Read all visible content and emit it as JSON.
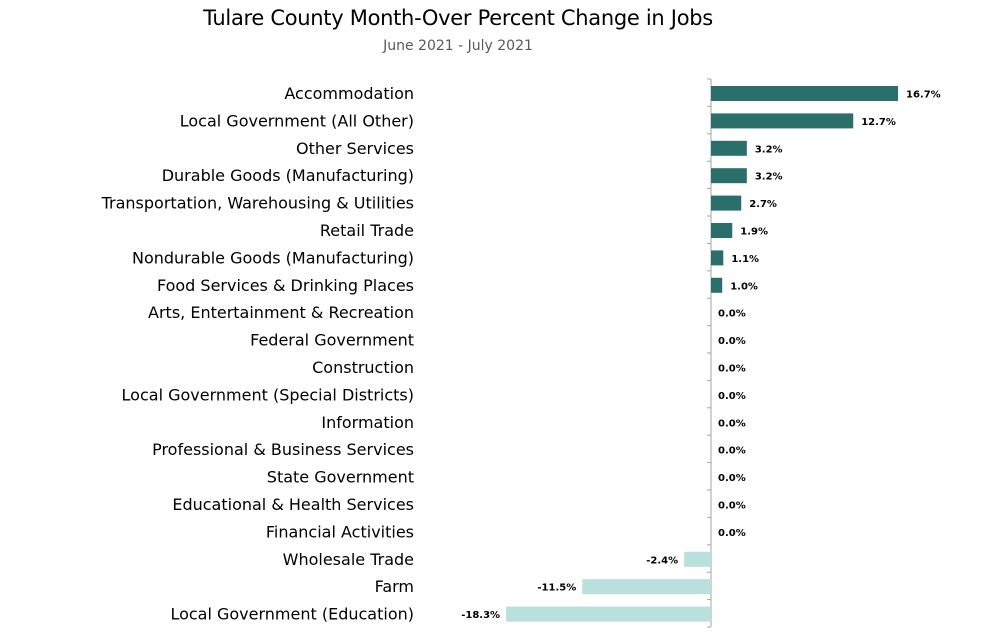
{
  "colors": {
    "positive": "#2a6f6a",
    "negative": "#b9e0dc",
    "axis": "#a6a6a6"
  },
  "chart_data": {
    "type": "bar",
    "orientation": "horizontal",
    "title": "Tulare County Month-Over Percent Change in Jobs",
    "subtitle": "June 2021 - July 2021",
    "grid": false,
    "legend": "none",
    "xlim": [
      -18.3,
      16.7
    ],
    "categories": [
      "Accommodation",
      "Local Government (All Other)",
      "Other Services",
      "Durable Goods (Manufacturing)",
      "Transportation, Warehousing & Utilities",
      "Retail Trade",
      "Nondurable Goods (Manufacturing)",
      "Food Services & Drinking Places",
      "Arts, Entertainment & Recreation",
      "Federal Government",
      "Construction",
      "Local Government (Special Districts)",
      "Information",
      "Professional & Business Services",
      "State Government",
      "Educational & Health Services",
      "Financial Activities",
      "Wholesale Trade",
      "Farm",
      "Local Government (Education)"
    ],
    "values": [
      16.7,
      12.7,
      3.2,
      3.2,
      2.7,
      1.9,
      1.1,
      1.0,
      0.0,
      0.0,
      0.0,
      0.0,
      0.0,
      0.0,
      0.0,
      0.0,
      0.0,
      -2.4,
      -11.5,
      -18.3
    ],
    "value_labels": [
      "16.7%",
      "12.7%",
      "3.2%",
      "3.2%",
      "2.7%",
      "1.9%",
      "1.1%",
      "1.0%",
      "0.0%",
      "0.0%",
      "0.0%",
      "0.0%",
      "0.0%",
      "0.0%",
      "0.0%",
      "0.0%",
      "0.0%",
      "-2.4%",
      "-11.5%",
      "-18.3%"
    ]
  }
}
